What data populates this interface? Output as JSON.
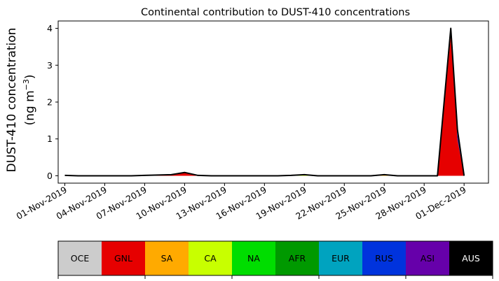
{
  "chart_data": {
    "type": "area",
    "title": "Continental contribution to DUST-410 concentrations",
    "ylabel_line1": "DUST-410 concentration",
    "ylabel_line2": "(ng m",
    "ylabel_unit_exp": "−3",
    "ylabel_close": ")",
    "xlabel": "",
    "ylim": [
      -0.2,
      4.2
    ],
    "yticks": [
      0,
      1,
      2,
      3,
      4
    ],
    "x_range_days": [
      "2019-10-31T12:00",
      "2019-12-02T20:00"
    ],
    "xticks": [
      "01-Nov-2019",
      "04-Nov-2019",
      "07-Nov-2019",
      "10-Nov-2019",
      "13-Nov-2019",
      "16-Nov-2019",
      "19-Nov-2019",
      "22-Nov-2019",
      "25-Nov-2019",
      "28-Nov-2019",
      "01-Dec-2019"
    ],
    "grid": false,
    "x": [
      "2019-11-01",
      "2019-11-02",
      "2019-11-03",
      "2019-11-04",
      "2019-11-05",
      "2019-11-06",
      "2019-11-07",
      "2019-11-08",
      "2019-11-09",
      "2019-11-10",
      "2019-11-11",
      "2019-11-12",
      "2019-11-13",
      "2019-11-14",
      "2019-11-15",
      "2019-11-16",
      "2019-11-17",
      "2019-11-18",
      "2019-11-19",
      "2019-11-20",
      "2019-11-21",
      "2019-11-22",
      "2019-11-23",
      "2019-11-24",
      "2019-11-25",
      "2019-11-26",
      "2019-11-27",
      "2019-11-28",
      "2019-11-29",
      "2019-11-30",
      "2019-11-30T12:00",
      "2019-12-01"
    ],
    "series": [
      {
        "name": "OCE",
        "color": "#cccccc",
        "values": [
          0.0,
          0.0,
          0.0,
          0.0,
          0.0,
          0.0,
          0.0,
          0.0,
          0.0,
          0.0,
          0.0,
          0.0,
          0.0,
          0.0,
          0.0,
          0.0,
          0.0,
          0.0,
          0.0,
          0.0,
          0.0,
          0.0,
          0.0,
          0.0,
          0.0,
          0.0,
          0.0,
          0.0,
          0.0,
          0.0,
          0.0,
          0.0
        ]
      },
      {
        "name": "GNL",
        "color": "#e60000",
        "values": [
          0.0,
          0.0,
          0.0,
          0.0,
          0.0,
          0.0,
          0.0,
          0.01,
          0.03,
          0.08,
          0.0,
          0.0,
          0.0,
          0.0,
          0.0,
          0.0,
          0.0,
          0.0,
          0.0,
          0.0,
          0.0,
          0.0,
          0.0,
          0.0,
          0.0,
          0.0,
          0.0,
          0.0,
          0.0,
          3.8,
          1.0,
          0.0
        ]
      },
      {
        "name": "SA",
        "color": "#ffaa00",
        "values": [
          0.01,
          0.0,
          0.0,
          0.0,
          0.0,
          0.0,
          0.01,
          0.01,
          0.0,
          0.01,
          0.0,
          0.0,
          0.0,
          0.0,
          0.0,
          0.0,
          0.0,
          0.0,
          0.0,
          0.0,
          0.0,
          0.0,
          0.0,
          0.0,
          0.02,
          0.0,
          0.0,
          0.0,
          0.0,
          0.02,
          0.0,
          0.0
        ]
      },
      {
        "name": "CA",
        "color": "#c8ff00",
        "values": [
          0.0,
          0.0,
          0.0,
          0.0,
          0.0,
          0.0,
          0.0,
          0.0,
          0.0,
          0.0,
          0.01,
          0.0,
          0.0,
          0.0,
          0.0,
          0.0,
          0.0,
          0.0,
          0.01,
          0.0,
          0.0,
          0.0,
          0.0,
          0.0,
          0.01,
          0.0,
          0.0,
          0.0,
          0.0,
          0.0,
          0.0,
          0.0
        ]
      },
      {
        "name": "NA",
        "color": "#00dd00",
        "values": [
          0.0,
          0.0,
          0.0,
          0.0,
          0.0,
          0.0,
          0.0,
          0.0,
          0.0,
          0.0,
          0.0,
          0.0,
          0.0,
          0.0,
          0.0,
          0.0,
          0.0,
          0.01,
          0.02,
          0.0,
          0.0,
          0.0,
          0.0,
          0.0,
          0.0,
          0.0,
          0.0,
          0.0,
          0.0,
          0.0,
          0.0,
          0.0
        ]
      },
      {
        "name": "AFR",
        "color": "#009900",
        "values": [
          0.0,
          0.0,
          0.0,
          0.0,
          0.0,
          0.0,
          0.0,
          0.0,
          0.0,
          0.0,
          0.0,
          0.0,
          0.0,
          0.0,
          0.0,
          0.0,
          0.0,
          0.0,
          0.0,
          0.0,
          0.0,
          0.0,
          0.0,
          0.0,
          0.0,
          0.0,
          0.0,
          0.0,
          0.0,
          0.0,
          0.0,
          0.0
        ]
      },
      {
        "name": "EUR",
        "color": "#00a3bf",
        "values": [
          0.0,
          0.0,
          0.0,
          0.0,
          0.0,
          0.0,
          0.0,
          0.0,
          0.0,
          0.0,
          0.0,
          0.0,
          0.0,
          0.0,
          0.0,
          0.0,
          0.0,
          0.0,
          0.0,
          0.0,
          0.0,
          0.0,
          0.0,
          0.0,
          0.0,
          0.0,
          0.0,
          0.0,
          0.0,
          0.03,
          0.0,
          0.0
        ]
      },
      {
        "name": "RUS",
        "color": "#0033dd",
        "values": [
          0.0,
          0.0,
          0.0,
          0.0,
          0.0,
          0.0,
          0.0,
          0.0,
          0.0,
          0.0,
          0.0,
          0.0,
          0.0,
          0.0,
          0.0,
          0.0,
          0.0,
          0.0,
          0.0,
          0.0,
          0.0,
          0.0,
          0.0,
          0.0,
          0.0,
          0.0,
          0.0,
          0.0,
          0.0,
          0.15,
          0.25,
          0.0
        ]
      },
      {
        "name": "ASI",
        "color": "#6600aa",
        "values": [
          0.0,
          0.0,
          0.0,
          0.0,
          0.0,
          0.0,
          0.0,
          0.0,
          0.0,
          0.0,
          0.0,
          0.0,
          0.0,
          0.0,
          0.0,
          0.0,
          0.0,
          0.0,
          0.0,
          0.0,
          0.0,
          0.0,
          0.0,
          0.0,
          0.0,
          0.0,
          0.0,
          0.0,
          0.0,
          0.0,
          0.0,
          0.0
        ]
      },
      {
        "name": "AUS",
        "color": "#000000",
        "values": [
          0.0,
          0.0,
          0.0,
          0.0,
          0.0,
          0.0,
          0.0,
          0.0,
          0.0,
          0.0,
          0.0,
          0.0,
          0.0,
          0.0,
          0.0,
          0.0,
          0.0,
          0.0,
          0.0,
          0.0,
          0.0,
          0.0,
          0.0,
          0.0,
          0.0,
          0.0,
          0.0,
          0.0,
          0.0,
          0.0,
          0.0,
          0.0
        ]
      }
    ]
  },
  "colorbar": {
    "labels": [
      "OCE",
      "GNL",
      "SA",
      "CA",
      "NA",
      "AFR",
      "EUR",
      "RUS",
      "ASI",
      "AUS"
    ],
    "text_colors": [
      "#000000",
      "#000000",
      "#000000",
      "#000000",
      "#000000",
      "#000000",
      "#000000",
      "#000000",
      "#000000",
      "#ffffff"
    ]
  }
}
